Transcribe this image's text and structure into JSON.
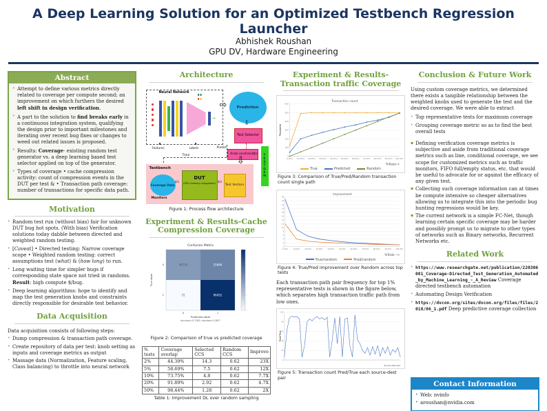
{
  "header": {
    "title": "A Deep Learning Solution for an Optimized Testbench Regression Launcher",
    "author": "Abhishek Roushan",
    "affiliation": "GPU DV, Hardware Engineering"
  },
  "icons": {
    "arrow_right": "⇨",
    "arrow_down": "⇩",
    "arrow_left": "⇦",
    "triangle_up": "▲",
    "small_arrow": "→"
  },
  "colors": {
    "title_navy": "#1a3560",
    "section_green": "#6ea03c",
    "abstract_bar": "#8cab55",
    "frame_green": "#79a447",
    "contact_blue": "#1c86c8",
    "series_true_orange": "#f4aa38",
    "series_pred_blue": "#4472c4",
    "series_random_green": "#6d8b3d",
    "series_orange": "#ed7d31"
  },
  "abstract": {
    "heading": "Abstract",
    "items": [
      "Attempt to define various metrics directly related to coverage per compute second; an improvement on which furthers the desired <b>left shift in design verification</b>.",
      "A part to the solution to <b>find breaks early</b> in a continuous integration system, qualifying the design prior to important milestones and iterating over recent bug fixes or changes to weed out related issues is proposed.",
      "Results: <b>Coverage</b>- existing random test generator vs. a deep learning based test selector applied on top of the generator.",
      "Types of coverage &bull; cache compression activity: count of compression events in the DUT per test &amp; &bull; Transaction path coverage: number of transactions for specific data path."
    ]
  },
  "motivation": {
    "heading": "Motivation",
    "items": [
      "Random test run (without bias) fair for unknown DUT bug hot spots. (With bias) Verification solutions today dabble between directed and weighted random testing.",
      "[<i>Caveat</i>] &bull; Directed testing: Narrow coverage scope &bull; Weighted random testing: correct assumptions test (<i>what</i>) &amp; (<i>how long</i>) to run.",
      "Long waiting time for simpler bugs if corresponding state space not tried in randoms. <b>Result</b>: high compute $/bug.",
      "Deep learning algorithms: hope to identify and map the test generation knobs and constraints directly responsible for desirable test behavior."
    ]
  },
  "data_acquisition": {
    "heading": "Data Acquisition",
    "intro": "Data acquisition consists of following steps:",
    "items": [
      "Dump compression &amp; transaction path coverage.",
      "Create repository of data per test: knob setting as inputs and coverage metrics as output",
      "Massage data (Normalization, Feature scaling, Class balancing) to throttle into neural network"
    ]
  },
  "architecture": {
    "heading": "Architecture",
    "caption": "Figure 1: Process flow architecture",
    "diagram": {
      "neural_network": "Neural Network",
      "prediction": "Prediction",
      "test_selector": "Test Selector",
      "knob_constraints": "Knob constraints",
      "testgen": "TESTGEN",
      "testbench": "Testbench",
      "coverage_data": "Coverage Data",
      "monitors": "Monitors",
      "dut": "DUT",
      "dut_sub": "(GPU memory subsystem)",
      "test_vectors": "Test Vectors",
      "features": "Features",
      "labels": "Labels",
      "predict": "Predict",
      "train": "Train"
    }
  },
  "cache_section": {
    "heading": "Experiment & Results-Cache Compression Coverage",
    "figure_caption": "Figure 2: Comparison of true vs predicted coverage",
    "table": {
      "headers": [
        "% tests",
        "Coverage overlap",
        "Selected CCS",
        "Random CCS",
        "Improve"
      ],
      "rows": [
        [
          "2%",
          "44.39%",
          "14.3",
          "0.62",
          "23X"
        ],
        [
          "5%",
          "58.69%",
          "7.5",
          "0.62",
          "12X"
        ],
        [
          "10%",
          "73.75%",
          "4.8",
          "0.62",
          "7.7X"
        ],
        [
          "20%",
          "91.89%",
          "2.92",
          "0.62",
          "4.7X"
        ],
        [
          "50%",
          "98.44%",
          "1.28",
          "0.62",
          "2X"
        ]
      ],
      "caption": "Table 1: Improvement DL over random sampling"
    }
  },
  "transaction_section": {
    "heading": "Experiment & Results-Transaction traffic Coverage",
    "figure3_caption": "Figure 3: Comparison of True/Pred/Random transaction count single path",
    "figure4_caption": "Figure 4: True/Pred improvement over Random across top tests",
    "paragraph": "Each transaction path pair frequency for top 1% representative tests is shown in the figure below, which separates high transaction traffic path from low ones.",
    "figure5_caption": "Figure 5: Transaction count Pred/True each source-dest pair"
  },
  "conclusion": {
    "heading": "Conclusion & Future Work",
    "intro": "Using custom coverage metrics, we determined there exists a tangible relationship between the weighted knobs used to generate the test and the desired coverage. We were able to extract",
    "items": [
      "Top representative tests for maximum coverage",
      "Grouping coverage metric so as to find the best overall tests"
    ],
    "future_items": [
      "Defining verification coverage metrics is subjective and aside from traditional coverage metrics such as line, conditional coverage, we see scope for customized metrics such as traffic monitors, FIFO full/empty status, etc. that would be useful to advocate for or against the efficacy of any given test.",
      "Collecting such coverage information can at times be compute intensive so cheaper alternatives allowing us to integrate this into the periodic bug hunting regressions would be key.",
      "The current network is a simple FC-Net, though learning certain specific coverage may be harder and possibly prompt us to migrate to other types of networks such as Binary networks, Recurrent Networks etc."
    ]
  },
  "related_work": {
    "heading": "Related Work",
    "items": [
      "<span class='mono'>https://www.researchgate.net/publication/220306081_Coverage-Directed_Test_Generation_Automated_by_Machine_Learning_-_A_Review</span> Coverage directed testbench automation",
      "Automating Design Verification",
      "<span class='mono'>https://dvcon.org/sites/dvcon.org/files/files/2018/06_1.pdf</span> Deep predictive coverage collection"
    ]
  },
  "contact": {
    "heading": "Contact Information",
    "items": [
      "Web: nvinfo",
      "aroushan@nvidia.com"
    ]
  },
  "chart_data": [
    {
      "figure": "Figure 2",
      "type": "heatmap",
      "title": "Confusion Matrix",
      "xlabel": "Predicted label",
      "ylabel": "True label",
      "x_categories": [
        "0",
        "1"
      ],
      "y_categories": [
        "0",
        "1"
      ],
      "values": [
        [
          46150,
          55846
        ],
        [
          72,
          96452
        ]
      ],
      "footnote": "accuracy=0.7183; misclass=0.2817",
      "colormap": [
        "#f7fbff",
        "#08306b"
      ],
      "legend_position": "right-colorbar"
    },
    {
      "figure": "Figure 3",
      "type": "line",
      "title": "Transaction count",
      "ylabel": "Thousands",
      "xlabel": "%Tests->",
      "x_ticks": [
        "0.00%",
        "10.00%",
        "20.00%",
        "30.00%",
        "40.00%",
        "50.00%",
        "60.00%",
        "70.00%",
        "80.00%",
        "90.00%",
        "100.00%"
      ],
      "ylim": [
        0,
        600
      ],
      "y_ticks": [
        0,
        100,
        200,
        300,
        400,
        500,
        600
      ],
      "grid": true,
      "legend_position": "bottom",
      "series": [
        {
          "name": "True",
          "color": "#f4aa38",
          "values": [
            120,
            490,
            500,
            500,
            500,
            500,
            500,
            500,
            500,
            500,
            500
          ]
        },
        {
          "name": "Predicted",
          "color": "#4472c4",
          "values": [
            45,
            200,
            240,
            275,
            305,
            335,
            360,
            390,
            415,
            445,
            495
          ]
        },
        {
          "name": "Random",
          "color": "#6d8b3d",
          "values": [
            0,
            50,
            100,
            150,
            200,
            250,
            300,
            350,
            400,
            450,
            495
          ]
        }
      ]
    },
    {
      "figure": "Figure 4",
      "type": "line",
      "title": "Improvement",
      "ylabel": "",
      "xlabel": "%Tests -->",
      "x_ticks": [
        "1.00%",
        "10.00%",
        "20.00%",
        "30.00%",
        "40.00%",
        "50.00%",
        "60.00%",
        "70.00%",
        "80.00%",
        "90.00%",
        "100.00%"
      ],
      "ylim": [
        0,
        26
      ],
      "y_ticks": [
        0,
        2,
        4,
        6,
        8,
        10,
        12,
        14,
        16,
        18,
        20,
        22,
        24,
        26
      ],
      "grid": true,
      "legend_position": "bottom",
      "series": [
        {
          "name": "True/random",
          "color": "#4472c4",
          "values": [
            25,
            9,
            5.5,
            4,
            3.2,
            2.6,
            2.1,
            1.8,
            1.5,
            1.2,
            1.0
          ]
        },
        {
          "name": "Pred/random",
          "color": "#ed7d31",
          "values": [
            12,
            4,
            2.9,
            2.4,
            2.1,
            1.8,
            1.6,
            1.4,
            1.2,
            1.1,
            1.0
          ]
        }
      ]
    },
    {
      "figure": "Figure 5",
      "type": "line",
      "title": "",
      "ylabel": "Pred/True",
      "xlabel": "Source-dest pair",
      "ylim": [
        0,
        100
      ],
      "y_ticks": [
        0,
        20,
        40,
        60,
        80,
        100
      ],
      "grid": true,
      "series": [
        {
          "name": "Pred/True",
          "color": "#4472c4",
          "values": [
            5,
            62,
            88,
            92,
            90,
            91,
            86,
            6,
            30,
            80,
            86,
            82,
            88,
            91,
            86,
            89,
            84,
            90,
            6,
            42,
            88,
            34,
            91,
            6,
            86,
            88,
            30,
            6,
            95,
            42,
            34,
            20,
            14,
            26,
            10,
            28,
            12,
            30,
            8,
            26,
            14,
            28,
            10,
            22,
            16,
            26,
            6
          ]
        }
      ]
    }
  ]
}
